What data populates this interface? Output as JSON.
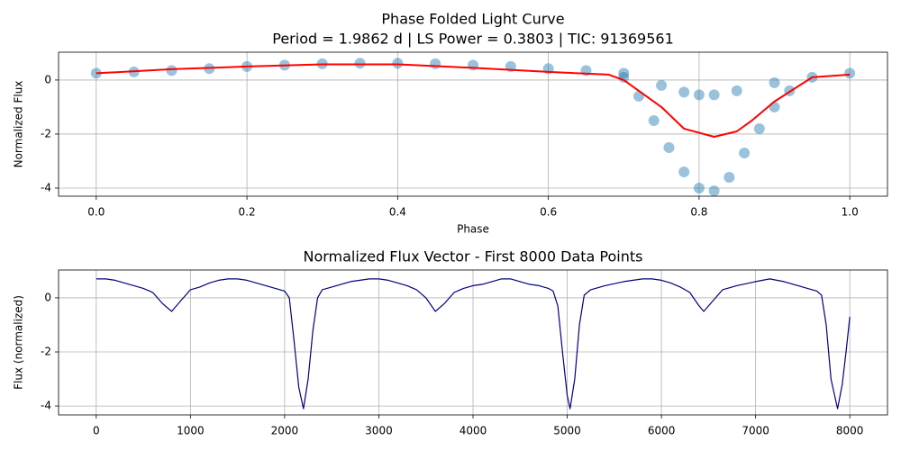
{
  "chart_data": [
    {
      "type": "scatter",
      "title": "Phase Folded Light Curve",
      "subtitle": "Period = 1.9862 d | LS Power = 0.3803 | TIC: 91369561",
      "xlabel": "Phase",
      "ylabel": "Normalized Flux",
      "xlim": [
        -0.05,
        1.05
      ],
      "ylim": [
        -4.3,
        1.03
      ],
      "xticks": [
        {
          "value": 0,
          "label": "0.0"
        },
        0.2,
        0.4,
        0.6,
        0.8,
        {
          "value": 1,
          "label": "1.0"
        }
      ],
      "yticks": [
        -4,
        -2,
        0
      ],
      "grid": true,
      "series": [
        {
          "style": "points",
          "color": "#1f77b4",
          "x": [
            0,
            0.05,
            0.1,
            0.15,
            0.2,
            0.25,
            0.3,
            0.35,
            0.4,
            0.45,
            0.5,
            0.55,
            0.6,
            0.65,
            0.7,
            0.75,
            0.78,
            0.8,
            0.82,
            0.85,
            0.9,
            0.95,
            1.0,
            0.7,
            0.72,
            0.74,
            0.76,
            0.78,
            0.8,
            0.82,
            0.84,
            0.86,
            0.88,
            0.9,
            0.92
          ],
          "values": [
            0.25,
            0.3,
            0.35,
            0.42,
            0.5,
            0.55,
            0.6,
            0.62,
            0.62,
            0.6,
            0.55,
            0.5,
            0.42,
            0.35,
            0.25,
            -0.2,
            -0.45,
            -0.55,
            -0.55,
            -0.4,
            -0.1,
            0.1,
            0.25,
            0.1,
            -0.6,
            -1.5,
            -2.5,
            -3.4,
            -4.0,
            -4.1,
            -3.6,
            -2.7,
            -1.8,
            -1.0,
            -0.4
          ]
        },
        {
          "style": "line",
          "color": "#ff0000",
          "x": [
            0,
            0.1,
            0.2,
            0.3,
            0.4,
            0.5,
            0.6,
            0.68,
            0.7,
            0.75,
            0.78,
            0.82,
            0.85,
            0.87,
            0.9,
            0.95,
            1.0
          ],
          "values": [
            0.25,
            0.4,
            0.5,
            0.58,
            0.58,
            0.45,
            0.3,
            0.2,
            0.0,
            -1.0,
            -1.8,
            -2.1,
            -1.9,
            -1.5,
            -0.8,
            0.1,
            0.2
          ]
        }
      ]
    },
    {
      "type": "line",
      "title": "Normalized Flux Vector - First 8000 Data Points",
      "ylabel": "Flux (normalized)",
      "xlim": [
        -400,
        8400
      ],
      "ylim": [
        -4.33,
        1.03
      ],
      "xticks": [
        0,
        1000,
        2000,
        3000,
        4000,
        5000,
        6000,
        7000,
        8000
      ],
      "yticks": [
        -4,
        -2,
        0
      ],
      "grid": true,
      "series": [
        {
          "style": "line",
          "color": "#000080",
          "x": [
            0,
            100,
            200,
            300,
            400,
            500,
            600,
            700,
            800,
            900,
            1000,
            1100,
            1200,
            1300,
            1400,
            1500,
            1600,
            1700,
            1800,
            1900,
            2000,
            2050,
            2100,
            2150,
            2200,
            2250,
            2300,
            2350,
            2400,
            2500,
            2600,
            2700,
            2800,
            2900,
            3000,
            3100,
            3200,
            3300,
            3400,
            3500,
            3600,
            3700,
            3800,
            3900,
            4000,
            4100,
            4200,
            4300,
            4400,
            4500,
            4600,
            4700,
            4800,
            4850,
            4900,
            4950,
            5000,
            5030,
            5080,
            5130,
            5180,
            5250,
            5400,
            5600,
            5800,
            5900,
            6000,
            6100,
            6200,
            6300,
            6400,
            6450,
            6550,
            6650,
            6800,
            7000,
            7150,
            7300,
            7500,
            7650,
            7700,
            7750,
            7800,
            7870,
            7920,
            7960,
            8000
          ],
          "values": [
            0.7,
            0.7,
            0.65,
            0.55,
            0.45,
            0.35,
            0.2,
            -0.2,
            -0.5,
            -0.1,
            0.3,
            0.4,
            0.55,
            0.65,
            0.7,
            0.7,
            0.65,
            0.55,
            0.45,
            0.35,
            0.25,
            0.0,
            -1.6,
            -3.3,
            -4.1,
            -3.0,
            -1.2,
            0.0,
            0.3,
            0.4,
            0.5,
            0.6,
            0.65,
            0.7,
            0.7,
            0.65,
            0.55,
            0.45,
            0.3,
            0.0,
            -0.5,
            -0.2,
            0.2,
            0.35,
            0.45,
            0.5,
            0.6,
            0.7,
            0.7,
            0.6,
            0.5,
            0.45,
            0.35,
            0.25,
            -0.3,
            -2.0,
            -3.6,
            -4.1,
            -3.0,
            -1.0,
            0.1,
            0.3,
            0.45,
            0.6,
            0.7,
            0.7,
            0.65,
            0.55,
            0.4,
            0.2,
            -0.3,
            -0.5,
            -0.1,
            0.3,
            0.45,
            0.6,
            0.7,
            0.6,
            0.4,
            0.25,
            0.1,
            -1.0,
            -3.0,
            -4.1,
            -3.2,
            -2.0,
            -0.7
          ]
        }
      ]
    }
  ]
}
